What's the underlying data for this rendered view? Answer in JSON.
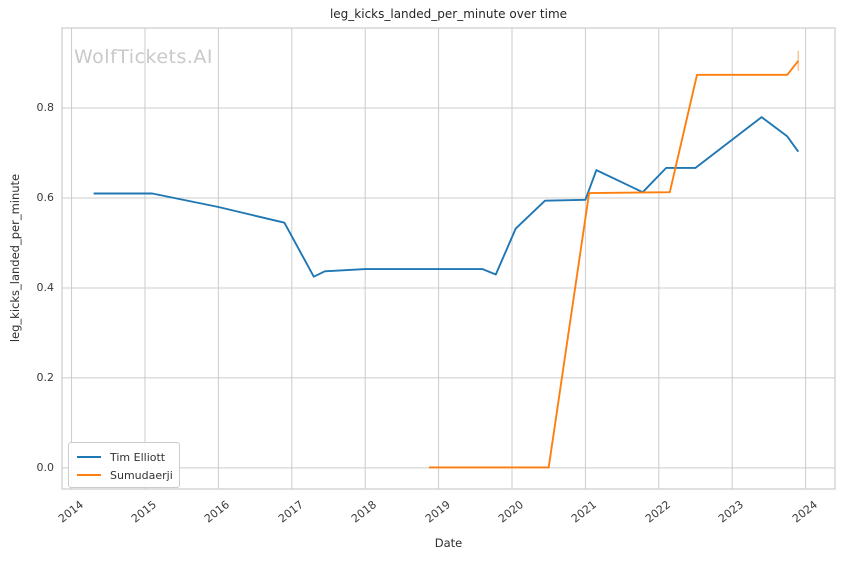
{
  "watermark": {
    "text": "WolfTickets.AI"
  },
  "chart_data": {
    "type": "line",
    "title": "leg_kicks_landed_per_minute over time",
    "xlabel": "Date",
    "ylabel": "leg_kicks_landed_per_minute",
    "grid": true,
    "legend_position": "lower left",
    "xlim": [
      2013.87,
      2024.4
    ],
    "ylim": [
      -0.047,
      0.978
    ],
    "x_tick_values": [
      2014,
      2015,
      2016,
      2017,
      2018,
      2019,
      2020,
      2021,
      2022,
      2023,
      2024
    ],
    "x_tick_labels": [
      "2014",
      "2015",
      "2016",
      "2017",
      "2018",
      "2019",
      "2020",
      "2021",
      "2022",
      "2023",
      "2024"
    ],
    "y_tick_values": [
      0.0,
      0.2,
      0.4,
      0.6,
      0.8
    ],
    "y_tick_labels": [
      "0.0",
      "0.2",
      "0.4",
      "0.6",
      "0.8"
    ],
    "colors": {
      "grid": "#cccccc",
      "spine": "#cccccc",
      "title_text": "#262626",
      "tick_text": "#3a3a3a",
      "watermark": "#c9c9c9",
      "series_blue": "#1f77b4",
      "series_orange": "#ff7f0e"
    },
    "series": [
      {
        "name": "Tim Elliott",
        "color": "#1f77b4",
        "points": [
          [
            2014.3,
            0.61
          ],
          [
            2015.1,
            0.61
          ],
          [
            2016.0,
            0.58
          ],
          [
            2016.9,
            0.545
          ],
          [
            2017.3,
            0.425
          ],
          [
            2017.45,
            0.437
          ],
          [
            2018.0,
            0.442
          ],
          [
            2019.6,
            0.442
          ],
          [
            2019.78,
            0.43
          ],
          [
            2020.05,
            0.532
          ],
          [
            2020.45,
            0.594
          ],
          [
            2021.0,
            0.596
          ],
          [
            2021.15,
            0.662
          ],
          [
            2021.78,
            0.613
          ],
          [
            2022.1,
            0.667
          ],
          [
            2022.5,
            0.667
          ],
          [
            2023.4,
            0.78
          ],
          [
            2023.75,
            0.737
          ],
          [
            2023.9,
            0.703
          ]
        ]
      },
      {
        "name": "Sumudaerji",
        "color": "#ff7f0e",
        "end_tick_marker": true,
        "points": [
          [
            2018.87,
            0.001
          ],
          [
            2020.5,
            0.001
          ],
          [
            2021.05,
            0.611
          ],
          [
            2022.15,
            0.613
          ],
          [
            2022.52,
            0.874
          ],
          [
            2023.75,
            0.874
          ],
          [
            2023.9,
            0.905
          ]
        ]
      }
    ]
  }
}
